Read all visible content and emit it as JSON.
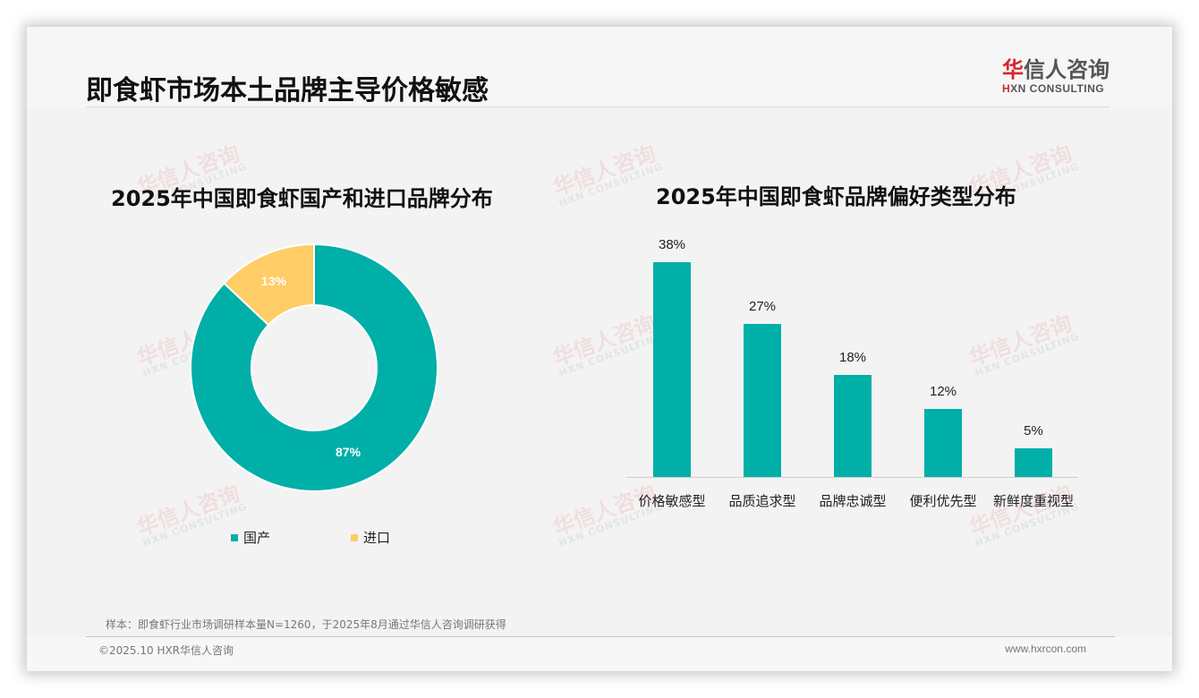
{
  "header": {
    "title": "即食虾市场本土品牌主导价格敏感",
    "logo": {
      "cn_accent": "华",
      "cn_rest": "信人咨询",
      "en_accent": "H",
      "en_rest": "XN CONSULTING"
    }
  },
  "watermark": {
    "cn": "华信人咨询",
    "en": "HXN CONSULTING"
  },
  "colors": {
    "teal": "#00afa8",
    "yellow": "#ffcc66",
    "brand_red": "#d8262c"
  },
  "left_chart": {
    "title": "2025年中国即食虾国产和进口品牌分布",
    "slices": [
      {
        "label": "国产",
        "value": 87,
        "display": "87%",
        "color": "#00afa8"
      },
      {
        "label": "进口",
        "value": 13,
        "display": "13%",
        "color": "#ffcc66"
      }
    ],
    "legend": [
      {
        "label": "国产",
        "color": "#00afa8"
      },
      {
        "label": "进口",
        "color": "#ffcc66"
      }
    ]
  },
  "right_chart": {
    "title": "2025年中国即食虾品牌偏好类型分布",
    "bars": [
      {
        "category": "价格敏感型",
        "value": 38,
        "display": "38%"
      },
      {
        "category": "品质追求型",
        "value": 27,
        "display": "27%"
      },
      {
        "category": "品牌忠诚型",
        "value": 18,
        "display": "18%"
      },
      {
        "category": "便利优先型",
        "value": 12,
        "display": "12%"
      },
      {
        "category": "新鲜度重视型",
        "value": 5,
        "display": "5%"
      }
    ]
  },
  "chart_data": [
    {
      "type": "pie",
      "title": "2025年中国即食虾国产和进口品牌分布",
      "categories": [
        "国产",
        "进口"
      ],
      "values": [
        87,
        13
      ],
      "unit": "%",
      "donut": true,
      "legend_position": "bottom"
    },
    {
      "type": "bar",
      "title": "2025年中国即食虾品牌偏好类型分布",
      "categories": [
        "价格敏感型",
        "品质追求型",
        "品牌忠诚型",
        "便利优先型",
        "新鲜度重视型"
      ],
      "values": [
        38,
        27,
        18,
        12,
        5
      ],
      "unit": "%",
      "xlabel": "",
      "ylabel": "",
      "ylim": [
        0,
        40
      ],
      "grid": false,
      "data_labels": true
    }
  ],
  "footer": {
    "sample_note": "样本：即食虾行业市场调研样本量N=1260，于2025年8月通过华信人咨询调研获得",
    "copyright": "©2025.10 HXR华信人咨询",
    "url": "www.hxrcon.com"
  }
}
